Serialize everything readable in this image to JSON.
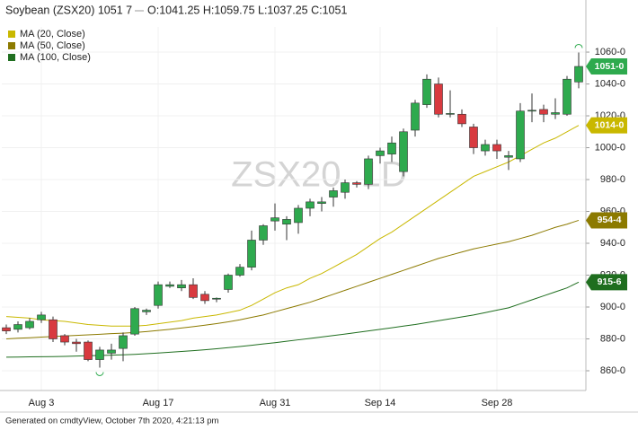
{
  "chart_data": {
    "type": "candlestick",
    "title": "Soybean (ZSX20) 1051 7",
    "ohlc_text": "O:1041.25 H:1059.75 L:1037.25 C:1051",
    "watermark": "ZSX20, 1D",
    "footer": "Generated on cmdtyView, October 7th 2020, 4:21:13 pm",
    "categories": [
      null,
      null,
      null,
      "Aug 3",
      null,
      null,
      null,
      null,
      null,
      null,
      null,
      null,
      null,
      "Aug 17",
      null,
      null,
      null,
      null,
      null,
      null,
      null,
      null,
      null,
      "Aug 31",
      null,
      null,
      null,
      null,
      null,
      null,
      null,
      null,
      "Sep 14",
      null,
      null,
      null,
      null,
      null,
      null,
      null,
      null,
      null,
      "Sep 28",
      null,
      null,
      null,
      null,
      null,
      null,
      null
    ],
    "open": [
      887,
      886,
      887,
      892,
      892,
      882,
      878,
      878,
      867,
      871,
      874,
      883,
      897,
      901,
      913,
      912,
      914,
      908,
      905,
      911,
      920,
      925,
      942,
      954,
      952,
      953,
      962,
      965,
      969,
      972,
      978,
      977,
      995,
      996,
      985,
      1011,
      1027,
      1040,
      1021,
      1021,
      1013,
      998,
      1002,
      994,
      993,
      1023,
      1024,
      1021,
      1021,
      1041.25
    ],
    "high": [
      889,
      891,
      893,
      897,
      894,
      883,
      880,
      879,
      875,
      877,
      884,
      900,
      899,
      916,
      916,
      917,
      918,
      910,
      906,
      921,
      927,
      948,
      952,
      965,
      957,
      964,
      968,
      969,
      975,
      980,
      979,
      995,
      1000,
      1007,
      1012,
      1030,
      1046,
      1044,
      1036,
      1024,
      1015,
      1005,
      1005,
      998,
      1028,
      1034,
      1027,
      1031,
      1045,
      1059.75
    ],
    "low": [
      883,
      884,
      886,
      890,
      878,
      876,
      872,
      866,
      862,
      867,
      866,
      882,
      895,
      899,
      912,
      910,
      905,
      902,
      903,
      909,
      919,
      923,
      939,
      948,
      942,
      946,
      957,
      960,
      963,
      968,
      975,
      974,
      990,
      991,
      982,
      1007,
      1025,
      1019,
      1019,
      1013,
      996,
      995,
      993,
      986,
      991,
      1016,
      1016,
      1018,
      1020,
      1037.25
    ],
    "close": [
      885,
      889,
      891,
      895,
      880,
      878,
      877,
      867,
      873,
      873,
      882,
      899,
      898,
      914,
      914,
      914,
      906,
      904,
      905.5,
      920,
      925,
      942,
      951,
      956,
      955,
      962,
      966,
      966,
      973,
      978,
      977,
      993,
      998,
      1003,
      1010,
      1028,
      1043,
      1021,
      1021.5,
      1015,
      1000,
      1002,
      998,
      995,
      1023,
      1023.5,
      1021,
      1022,
      1043,
      1051
    ],
    "up_color": "#2eaa4e",
    "down_color": "#d83a3f",
    "last_label": "1051-0",
    "series": [
      {
        "name": "MA (20, Close)",
        "color": "#c9b800",
        "last_label": "1014-0",
        "values": [
          894,
          893.5,
          893,
          892,
          891.5,
          891,
          890,
          889,
          888.5,
          888,
          888,
          888,
          888.5,
          889.5,
          890.5,
          891.5,
          893,
          894,
          895,
          896.5,
          898,
          901,
          905,
          909,
          912,
          914,
          918,
          921,
          925,
          929,
          933,
          938,
          943,
          947,
          952,
          957,
          962,
          967,
          972,
          977,
          982,
          985,
          988,
          991,
          995,
          999,
          1003,
          1006,
          1010,
          1014
        ]
      },
      {
        "name": "MA (50, Close)",
        "color": "#8c7a00",
        "last_label": "954-4",
        "values": [
          880,
          880.4,
          880.7,
          881.1,
          881.5,
          881.8,
          882.2,
          882.5,
          882.9,
          883.3,
          883.6,
          884,
          884.6,
          885.3,
          886,
          886.8,
          887.7,
          888.6,
          889.6,
          890.7,
          892,
          893.5,
          895,
          897,
          899,
          901,
          903,
          905.5,
          908,
          910.5,
          913,
          915.5,
          918,
          920.5,
          923,
          925.5,
          928,
          930.5,
          932.5,
          934.5,
          936.5,
          938,
          939.5,
          941,
          943,
          945,
          947.5,
          950,
          952,
          954.4
        ]
      },
      {
        "name": "MA (100, Close)",
        "color": "#1f6e1f",
        "last_label": "915-6",
        "values": [
          868.5,
          868.6,
          868.7,
          868.8,
          868.9,
          869,
          869.2,
          869.4,
          869.6,
          869.8,
          870,
          870.3,
          870.7,
          871.1,
          871.6,
          872.1,
          872.6,
          873.2,
          873.8,
          874.5,
          875.2,
          876,
          876.8,
          877.6,
          878.5,
          879.4,
          880.3,
          881.2,
          882.1,
          883,
          884,
          885,
          886,
          887,
          888,
          889,
          890.2,
          891.4,
          892.6,
          893.8,
          895,
          896.5,
          898,
          899.5,
          902,
          904.5,
          907,
          909.5,
          912,
          915.6
        ]
      }
    ],
    "ylim": [
      847.6,
      1075.8
    ],
    "yticks": [
      {
        "value": 860,
        "label": "860-0"
      },
      {
        "value": 880,
        "label": "880-0"
      },
      {
        "value": 900,
        "label": "900-0"
      },
      {
        "value": 920,
        "label": "920-0"
      },
      {
        "value": 940,
        "label": "940-0"
      },
      {
        "value": 960,
        "label": "960-0"
      },
      {
        "value": 980,
        "label": "980-0"
      },
      {
        "value": 1000,
        "label": "1000-0"
      },
      {
        "value": 1020,
        "label": "1020-0"
      },
      {
        "value": 1040,
        "label": "1040-0"
      },
      {
        "value": 1060,
        "label": "1060-0"
      }
    ],
    "grid": true
  }
}
